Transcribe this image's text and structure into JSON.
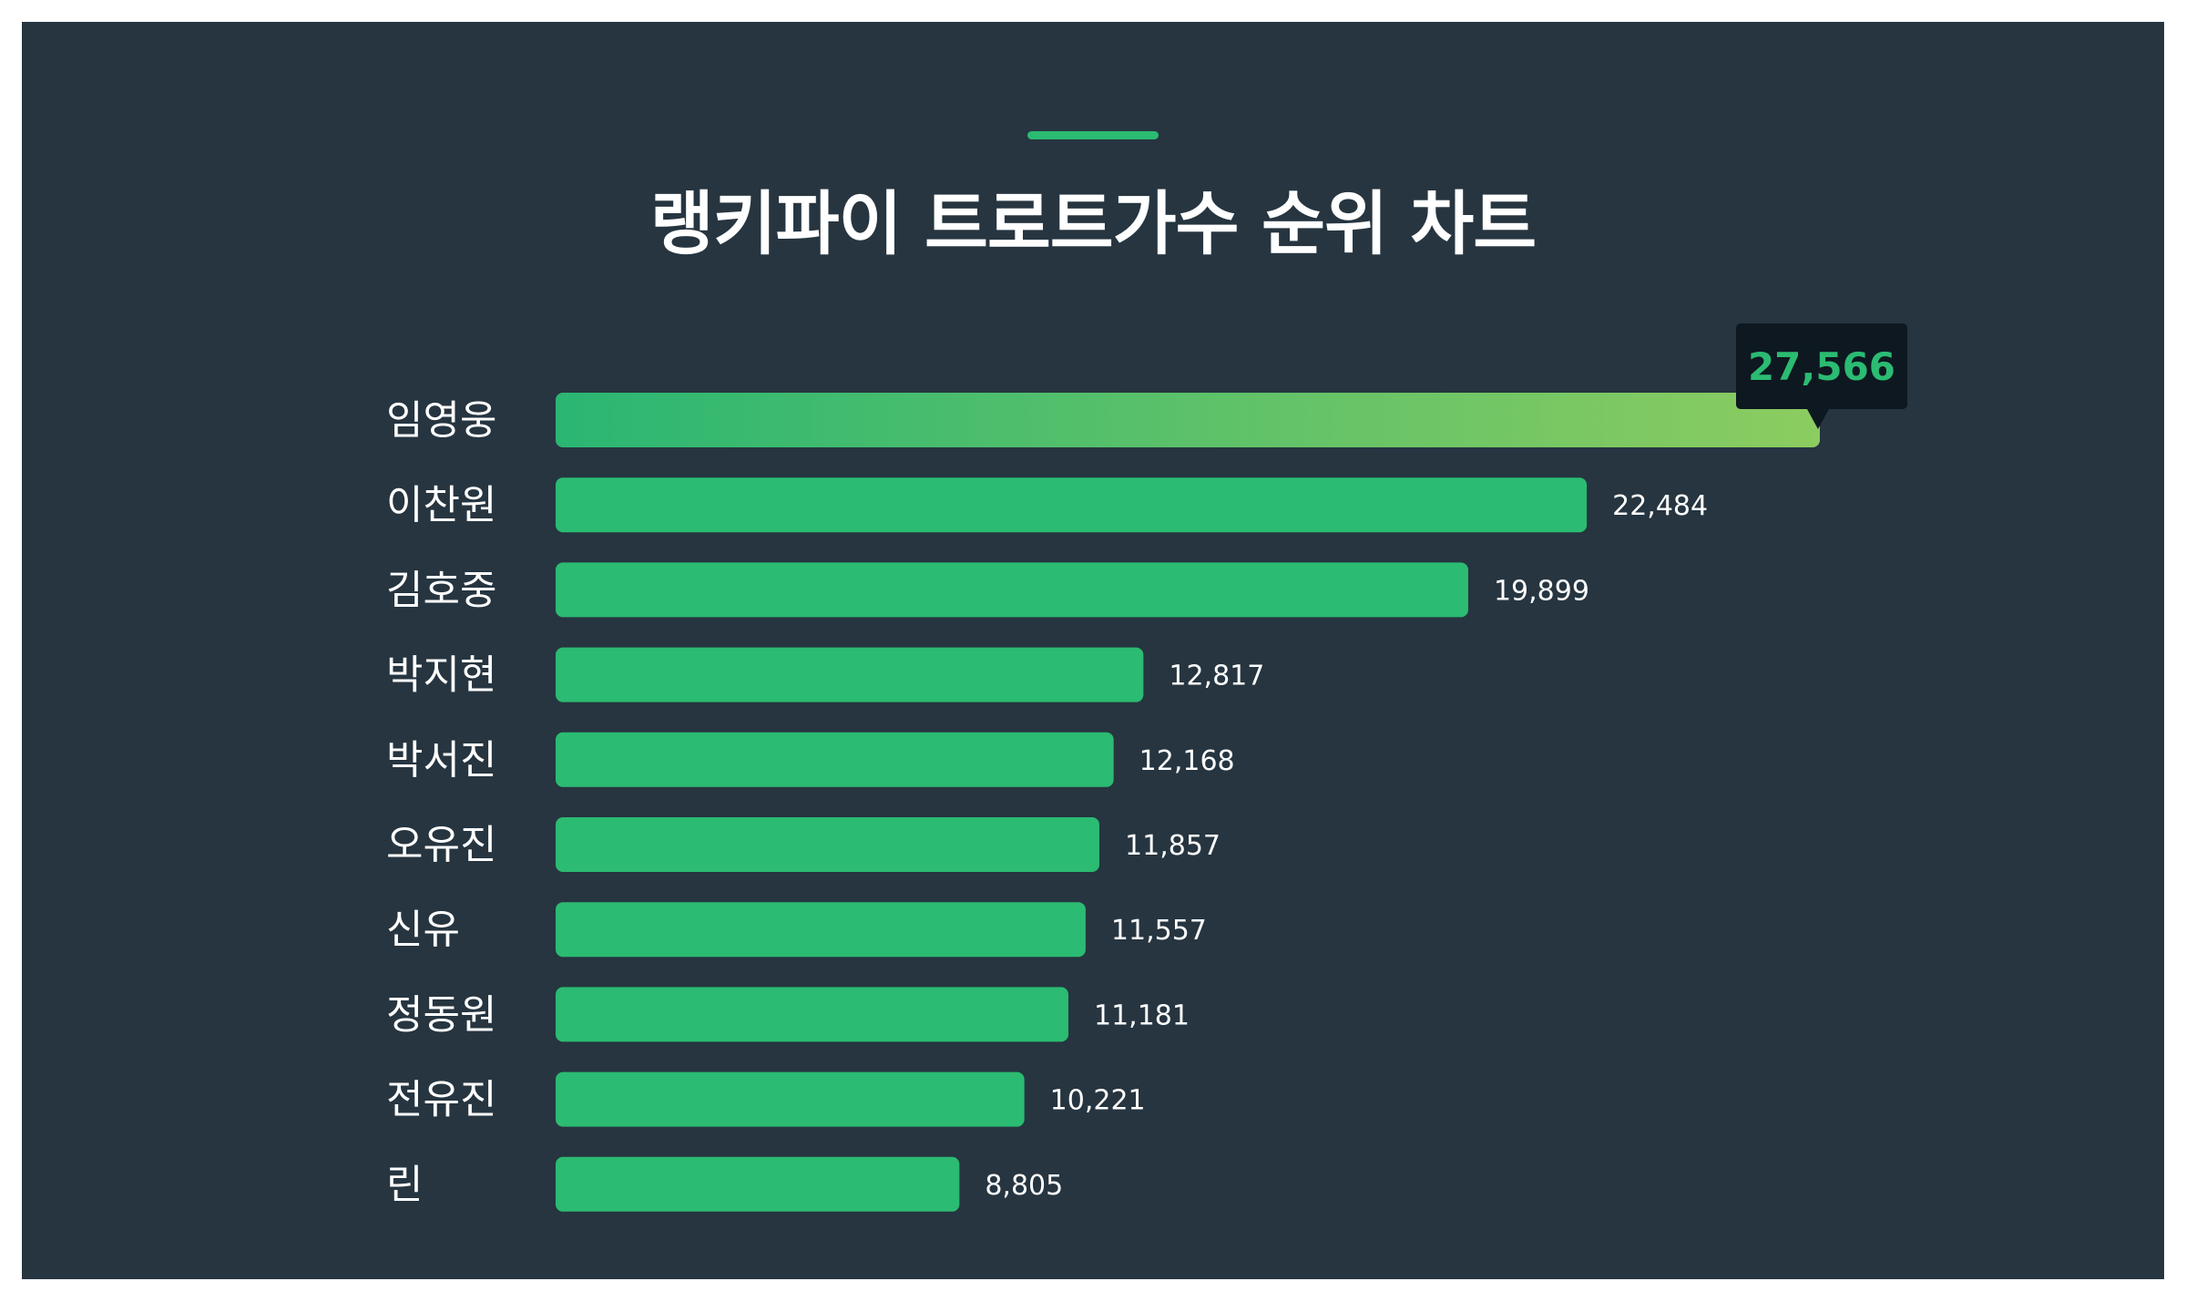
{
  "colors": {
    "background": "#263540",
    "bar": "#2bbb72",
    "highlight_start": "#2bb673",
    "highlight_end": "#8ccc60",
    "tooltip_bg": "#0e1820",
    "text": "#ffffff"
  },
  "chart_data": {
    "type": "bar",
    "orientation": "horizontal",
    "title": "랭키파이 트로트가수 순위 차트",
    "categories": [
      "임영웅",
      "이찬원",
      "김호중",
      "박지현",
      "박서진",
      "오유진",
      "신유",
      "정동원",
      "전유진",
      "린"
    ],
    "values": [
      27566,
      22484,
      19899,
      12817,
      12168,
      11857,
      11557,
      11181,
      10221,
      8805
    ],
    "value_labels": [
      "27,566",
      "22,484",
      "19,899",
      "12,817",
      "12,168",
      "11,857",
      "11,557",
      "11,181",
      "10,221",
      "8,805"
    ],
    "highlight_index": 0,
    "xlim": [
      0,
      27566
    ],
    "grid": false,
    "legend": "none"
  }
}
